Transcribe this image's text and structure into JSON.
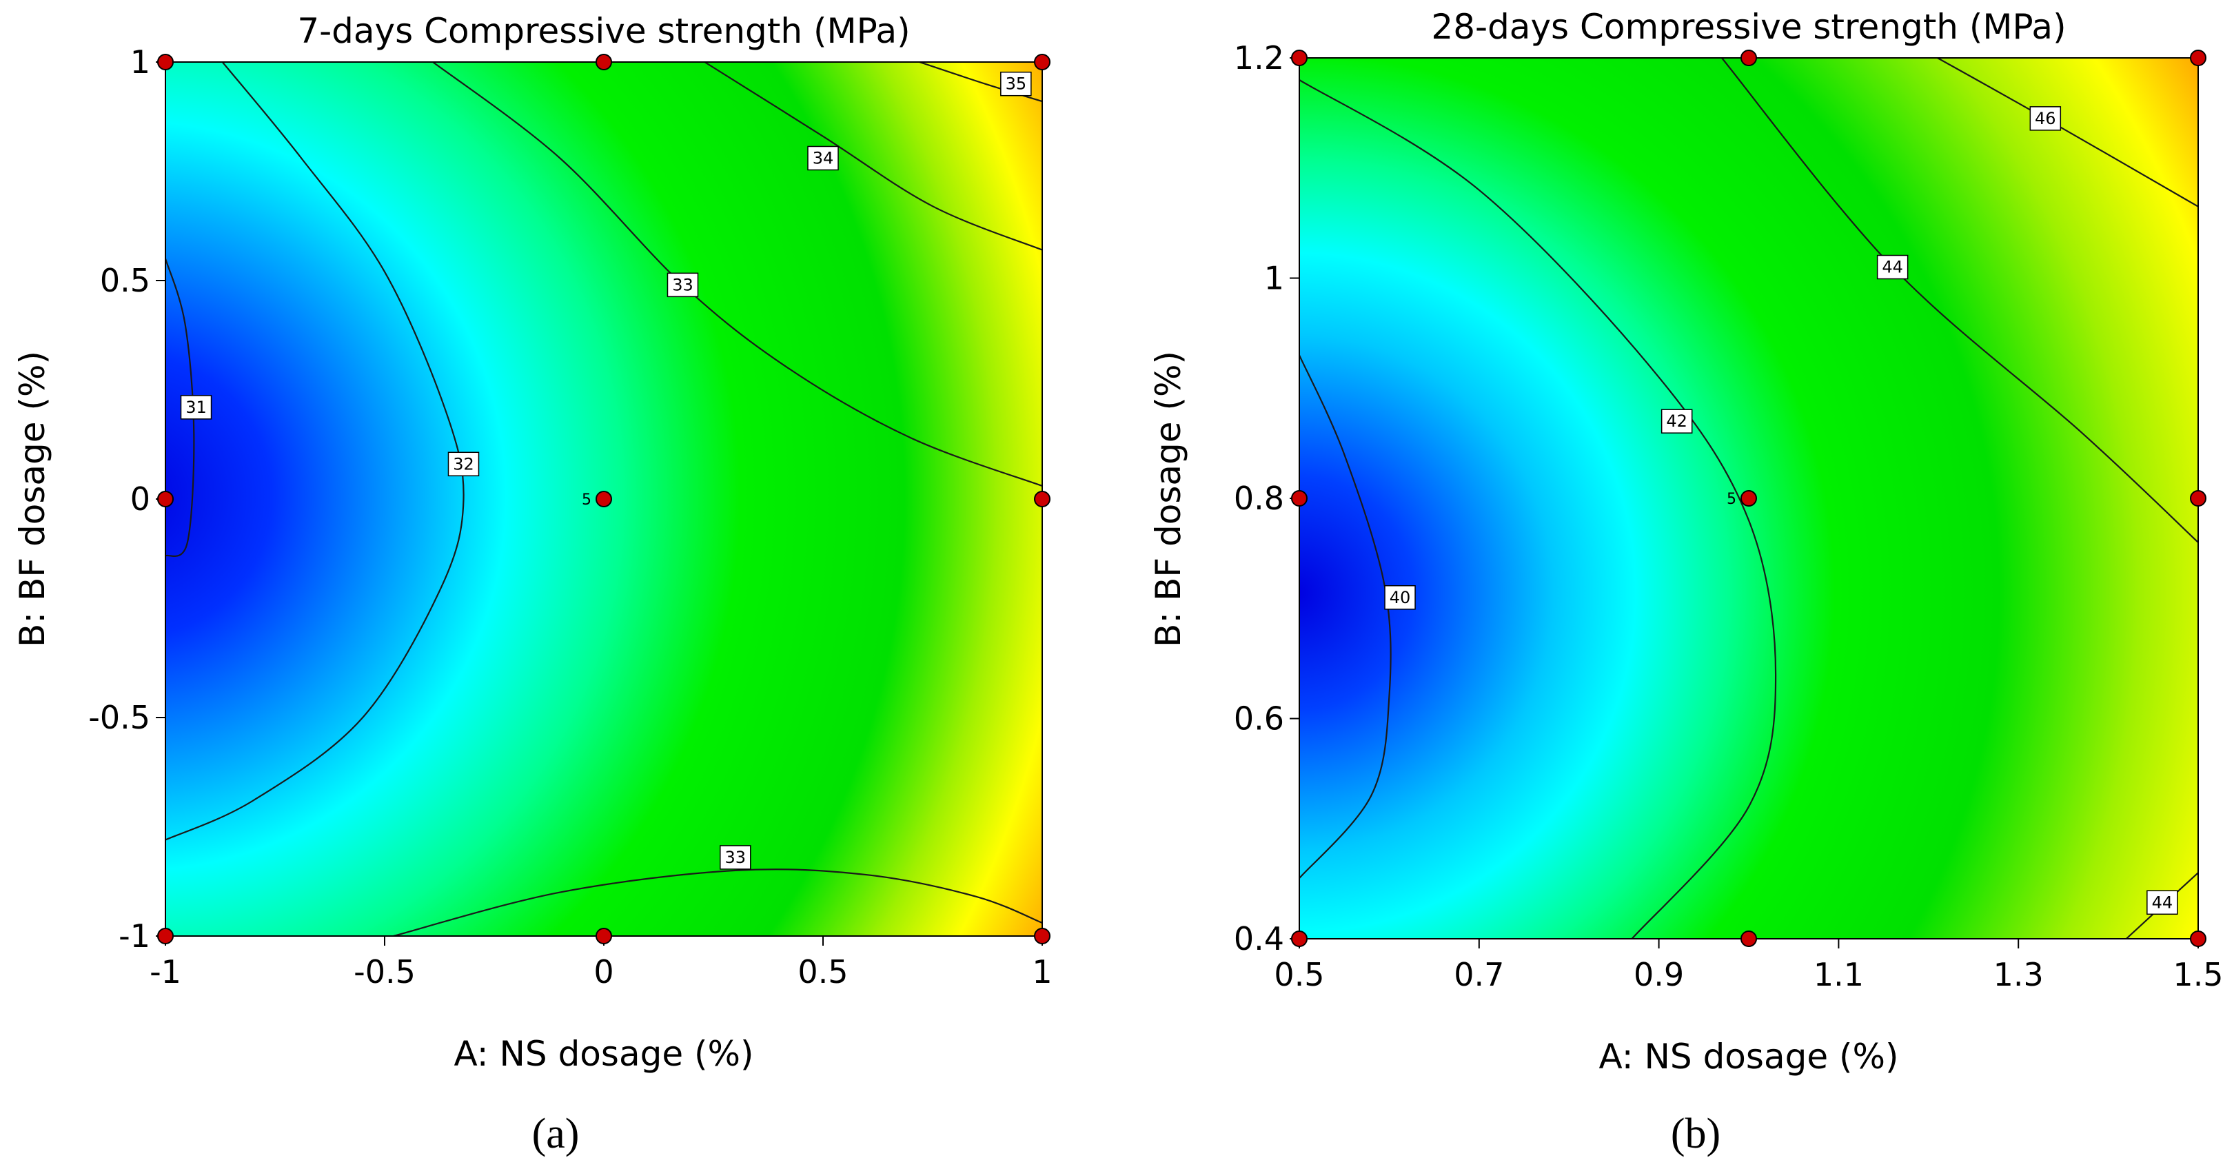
{
  "chart_data": [
    {
      "type": "contour",
      "panel_label": "(a)",
      "title": "7-days Compressive strength (MPa)",
      "xlabel": "A: NS dosage (%)",
      "ylabel": "B: BF dosage (%)",
      "xlim": [
        -1,
        1
      ],
      "ylim": [
        -1,
        1
      ],
      "xticks": [
        -1,
        -0.5,
        0,
        0.5,
        1
      ],
      "yticks": [
        -1,
        -0.5,
        0,
        0.5,
        1
      ],
      "xtick_labels": [
        "-1",
        "-0.5",
        "0",
        "0.5",
        "1"
      ],
      "ytick_labels": [
        "-1",
        "-0.5",
        "0",
        "0.5",
        "1"
      ],
      "color_range": [
        30.5,
        35.6
      ],
      "contours": [
        {
          "level": "31",
          "points": [
            [
              -1,
              0.55
            ],
            [
              -0.955,
              0.4
            ],
            [
              -0.935,
              0.15
            ],
            [
              -0.95,
              -0.1
            ],
            [
              -1,
              -0.13
            ]
          ],
          "label_at": [
            -0.93,
            0.21
          ]
        },
        {
          "level": "32",
          "points": [
            [
              -0.87,
              1.0
            ],
            [
              -0.69,
              0.78
            ],
            [
              -0.5,
              0.52
            ],
            [
              -0.36,
              0.2
            ],
            [
              -0.32,
              0.0
            ],
            [
              -0.37,
              -0.2
            ],
            [
              -0.55,
              -0.5
            ],
            [
              -0.8,
              -0.69
            ],
            [
              -1,
              -0.78
            ]
          ],
          "label_at": [
            -0.32,
            0.08
          ]
        },
        {
          "level": "33",
          "points": [
            [
              -0.39,
              1.0
            ],
            [
              -0.1,
              0.78
            ],
            [
              0.18,
              0.49
            ],
            [
              0.42,
              0.3
            ],
            [
              0.7,
              0.14
            ],
            [
              1.0,
              0.03
            ]
          ],
          "label_at": [
            0.18,
            0.49
          ]
        },
        {
          "level": "34",
          "points": [
            [
              0.23,
              1.0
            ],
            [
              0.5,
              0.83
            ],
            [
              0.75,
              0.67
            ],
            [
              1.0,
              0.57
            ]
          ],
          "label_at": [
            0.5,
            0.78
          ]
        },
        {
          "level": "35",
          "points": [
            [
              0.72,
              1.0
            ],
            [
              0.87,
              0.95
            ],
            [
              1.0,
              0.91
            ]
          ],
          "label_at": [
            0.94,
            0.95
          ]
        },
        {
          "level": "33",
          "points": [
            [
              -0.48,
              -1.0
            ],
            [
              -0.1,
              -0.9
            ],
            [
              0.3,
              -0.85
            ],
            [
              0.6,
              -0.86
            ],
            [
              0.85,
              -0.91
            ],
            [
              1.0,
              -0.97
            ]
          ],
          "label_at": [
            0.3,
            -0.82
          ]
        }
      ],
      "design_points": [
        [
          -1,
          1
        ],
        [
          0,
          1
        ],
        [
          1,
          1
        ],
        [
          -1,
          0
        ],
        [
          0,
          0
        ],
        [
          1,
          0
        ],
        [
          -1,
          -1
        ],
        [
          0,
          -1
        ],
        [
          1,
          -1
        ]
      ],
      "center_point_count": "5"
    },
    {
      "type": "contour",
      "panel_label": "(b)",
      "title": "28-days Compressive strength (MPa)",
      "xlabel": "A: NS dosage (%)",
      "ylabel": "B: BF dosage (%)",
      "xlim": [
        0.5,
        1.5
      ],
      "ylim": [
        0.4,
        1.2
      ],
      "xticks": [
        0.5,
        0.7,
        0.9,
        1.1,
        1.3,
        1.5
      ],
      "yticks": [
        0.4,
        0.6,
        0.8,
        1.0,
        1.2
      ],
      "xtick_labels": [
        "0.5",
        "0.7",
        "0.9",
        "1.1",
        "1.3",
        "1.5"
      ],
      "ytick_labels": [
        "0.4",
        "0.6",
        "0.8",
        "1",
        "1.2"
      ],
      "color_range": [
        39.3,
        47.6
      ],
      "contours": [
        {
          "level": "40",
          "points": [
            [
              0.5,
              0.93
            ],
            [
              0.55,
              0.84
            ],
            [
              0.595,
              0.72
            ],
            [
              0.6,
              0.62
            ],
            [
              0.58,
              0.53
            ],
            [
              0.5,
              0.455
            ]
          ],
          "label_at": [
            0.612,
            0.71
          ]
        },
        {
          "level": "42",
          "points": [
            [
              0.5,
              1.18
            ],
            [
              0.7,
              1.08
            ],
            [
              0.9,
              0.91
            ],
            [
              1.0,
              0.78
            ],
            [
              1.03,
              0.64
            ],
            [
              1.0,
              0.52
            ],
            [
              0.87,
              0.4
            ]
          ],
          "label_at": [
            0.92,
            0.87
          ]
        },
        {
          "level": "44",
          "points": [
            [
              0.97,
              1.2
            ],
            [
              1.16,
              1.01
            ],
            [
              1.37,
              0.86
            ],
            [
              1.5,
              0.76
            ]
          ],
          "label_at": [
            1.16,
            1.01
          ]
        },
        {
          "level": "46",
          "points": [
            [
              1.21,
              1.2
            ],
            [
              1.33,
              1.145
            ],
            [
              1.5,
              1.065
            ]
          ],
          "label_at": [
            1.33,
            1.145
          ]
        },
        {
          "level": "44",
          "points": [
            [
              1.42,
              0.4
            ],
            [
              1.46,
              0.43
            ],
            [
              1.5,
              0.46
            ]
          ],
          "label_at": [
            1.46,
            0.433
          ]
        }
      ],
      "design_points": [
        [
          0.5,
          1.2
        ],
        [
          1.0,
          1.2
        ],
        [
          1.5,
          1.2
        ],
        [
          0.5,
          0.8
        ],
        [
          1.0,
          0.8
        ],
        [
          1.5,
          0.8
        ],
        [
          0.5,
          0.4
        ],
        [
          1.0,
          0.4
        ],
        [
          1.5,
          0.4
        ]
      ],
      "center_point_count": "5"
    }
  ],
  "colors": {
    "colormap": [
      "#0000ff",
      "#00ffff",
      "#00ff00",
      "#00e400",
      "#ffff00",
      "#ff0000"
    ],
    "design_point": "#cc0000"
  }
}
